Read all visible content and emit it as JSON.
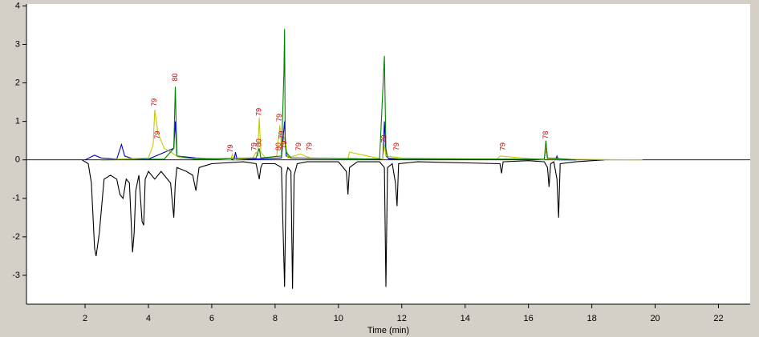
{
  "chart_data": {
    "type": "line",
    "x_label": "Time (min)",
    "xlim": [
      0.15,
      23
    ],
    "xticks": [
      2,
      4,
      6,
      8,
      10,
      12,
      14,
      16,
      18,
      20,
      22
    ],
    "ylim": [
      -3.75,
      4.05
    ],
    "yticks": [
      -3,
      -2,
      -1,
      0,
      1,
      2,
      3,
      4
    ],
    "series": [
      {
        "color": "#000000",
        "x": [
          1.9,
          2.1,
          2.2,
          2.3,
          2.35,
          2.45,
          2.6,
          2.8,
          3.0,
          3.1,
          3.2,
          3.3,
          3.4,
          3.5,
          3.55,
          3.6,
          3.7,
          3.8,
          3.85,
          3.9,
          4.0,
          4.2,
          4.4,
          4.7,
          4.8,
          4.85,
          4.9,
          5.2,
          5.4,
          5.5,
          5.6,
          6,
          7,
          7.4,
          7.5,
          7.55,
          7.6,
          8,
          8.2,
          8.3,
          8.35,
          8.4,
          8.5,
          8.55,
          8.6,
          8.7,
          9,
          10,
          10.25,
          10.3,
          10.35,
          10.6,
          11.3,
          11.45,
          11.5,
          11.55,
          11.7,
          11.8,
          11.85,
          11.9,
          12.5,
          15.1,
          15.15,
          15.2,
          16,
          16.5,
          16.6,
          16.65,
          16.7,
          16.8,
          16.9,
          16.95,
          17.0,
          17.5,
          18.4
        ],
        "values": [
          0,
          -0.1,
          -0.6,
          -2.3,
          -2.5,
          -1.9,
          -0.5,
          -0.4,
          -0.5,
          -0.9,
          -1.0,
          -0.5,
          -0.6,
          -2.4,
          -1.9,
          -0.8,
          -0.4,
          -1.6,
          -1.7,
          -0.5,
          -0.3,
          -0.5,
          -0.3,
          -0.6,
          -1.5,
          -0.6,
          -0.2,
          -0.3,
          -0.4,
          -0.8,
          -0.2,
          -0.1,
          -0.05,
          -0.1,
          -0.5,
          -0.2,
          -0.1,
          -0.1,
          -0.2,
          -3.3,
          -0.4,
          -0.2,
          -0.3,
          -3.35,
          -0.4,
          -0.1,
          -0.05,
          -0.05,
          -0.3,
          -0.9,
          -0.2,
          -0.05,
          -0.05,
          -0.2,
          -3.3,
          -0.2,
          -0.1,
          -0.6,
          -1.2,
          -0.1,
          -0.05,
          -0.1,
          -0.35,
          -0.05,
          -0.02,
          -0.05,
          -0.2,
          -0.7,
          -0.1,
          -0.05,
          -0.5,
          -1.5,
          -0.1,
          -0.05,
          0
        ]
      },
      {
        "color": "#0000cc",
        "x": [
          2,
          2.3,
          2.5,
          3.0,
          3.15,
          3.25,
          3.5,
          4.0,
          4.8,
          4.85,
          4.9,
          5.5,
          6.7,
          6.75,
          6.8,
          8.2,
          8.3,
          8.32,
          8.35,
          8.5,
          11.4,
          11.45,
          11.5,
          11.6,
          16.5,
          16.55,
          16.6,
          16.85,
          16.9,
          16.95,
          17.5
        ],
        "values": [
          0,
          0.12,
          0.05,
          0.02,
          0.4,
          0.1,
          0.03,
          0.02,
          0.3,
          1.0,
          0.1,
          0.05,
          0.0,
          0.2,
          0.0,
          0.05,
          1.0,
          0.6,
          0.1,
          0.05,
          0.02,
          1.0,
          0.1,
          0.02,
          0.01,
          0.3,
          0.02,
          0.0,
          0.1,
          0.0,
          0.0
        ]
      },
      {
        "color": "#c8c800",
        "x": [
          2.5,
          4.0,
          4.15,
          4.2,
          4.3,
          4.5,
          4.8,
          5.0,
          6.0,
          6.6,
          6.65,
          6.7,
          7.3,
          7.4,
          7.45,
          7.5,
          7.55,
          7.7,
          8.05,
          8.1,
          8.15,
          8.2,
          8.3,
          8.4,
          8.8,
          9.1,
          10.3,
          10.35,
          11.4,
          11.45,
          11.5,
          12,
          15,
          15.1,
          16.5,
          16.55,
          16.6,
          18,
          19.6
        ],
        "values": [
          0,
          0.05,
          0.4,
          1.3,
          0.7,
          0.3,
          0.15,
          0.05,
          0.03,
          0.0,
          0.15,
          0.0,
          0.05,
          0.2,
          0.1,
          1.1,
          0.2,
          0.05,
          0.1,
          0.5,
          0.9,
          0.3,
          0.6,
          0.05,
          0.15,
          0.05,
          0.03,
          0.2,
          0.02,
          0.4,
          0.1,
          0.05,
          0.02,
          0.1,
          0.0,
          0.3,
          0.02,
          0.01,
          0.0
        ]
      },
      {
        "color": "#008000",
        "x": [
          2.5,
          4.5,
          4.8,
          4.85,
          4.9,
          5.5,
          7.4,
          7.5,
          7.55,
          8.2,
          8.28,
          8.3,
          8.32,
          8.35,
          8.5,
          11.3,
          11.45,
          11.5,
          11.55,
          12,
          16.5,
          16.55,
          16.6,
          17.5
        ],
        "values": [
          0,
          0.02,
          0.3,
          1.9,
          0.1,
          0.02,
          0.05,
          0.3,
          0.05,
          0.1,
          2.3,
          3.4,
          0.4,
          0.2,
          0.05,
          0.02,
          2.7,
          0.3,
          0.05,
          0.02,
          0.02,
          0.5,
          0.05,
          0.0
        ]
      }
    ],
    "annotation_color": "#cc0000",
    "annotations": [
      {
        "text": "79",
        "x": 4.2,
        "y": 1.35
      },
      {
        "text": "79",
        "x": 4.3,
        "y": 0.5
      },
      {
        "text": "80",
        "x": 4.85,
        "y": 2.0
      },
      {
        "text": "79",
        "x": 6.6,
        "y": 0.15
      },
      {
        "text": "79",
        "x": 7.35,
        "y": 0.2
      },
      {
        "text": "80",
        "x": 7.5,
        "y": 0.3
      },
      {
        "text": "79",
        "x": 7.5,
        "y": 1.1
      },
      {
        "text": "79",
        "x": 8.15,
        "y": 0.95
      },
      {
        "text": "79",
        "x": 8.22,
        "y": 0.5
      },
      {
        "text": "80",
        "x": 8.12,
        "y": 0.2
      },
      {
        "text": "79",
        "x": 8.3,
        "y": 0.25
      },
      {
        "text": "79",
        "x": 8.75,
        "y": 0.2
      },
      {
        "text": "79",
        "x": 9.1,
        "y": 0.2
      },
      {
        "text": "79",
        "x": 11.45,
        "y": 0.4
      },
      {
        "text": "79",
        "x": 11.85,
        "y": 0.2
      },
      {
        "text": "79",
        "x": 15.2,
        "y": 0.2
      },
      {
        "text": "78",
        "x": 16.55,
        "y": 0.5
      }
    ]
  }
}
